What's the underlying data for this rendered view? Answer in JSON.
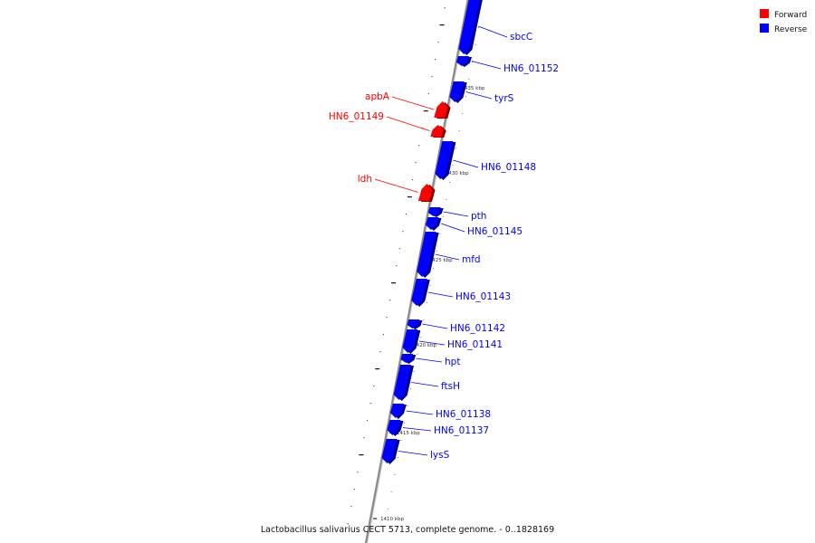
{
  "caption": "Lactobacillus salivarius CECT 5713, complete genome. - 0..1828169",
  "legend": [
    {
      "label": "Forward",
      "color": "#ff0000"
    },
    {
      "label": "Reverse",
      "color": "#0000ff"
    }
  ],
  "ticks": [
    "1435 kbp",
    "1430 kbp",
    "1425 kbp",
    "1420 kbp",
    "1415 kbp",
    "1410 kbp"
  ],
  "genes": [
    {
      "name": "sbcC",
      "strand": "Reverse"
    },
    {
      "name": "HN6_01152",
      "strand": "Reverse"
    },
    {
      "name": "tyrS",
      "strand": "Reverse"
    },
    {
      "name": "apbA",
      "strand": "Forward"
    },
    {
      "name": "HN6_01149",
      "strand": "Forward"
    },
    {
      "name": "HN6_01148",
      "strand": "Reverse"
    },
    {
      "name": "ldh",
      "strand": "Forward"
    },
    {
      "name": "pth",
      "strand": "Reverse"
    },
    {
      "name": "HN6_01145",
      "strand": "Reverse"
    },
    {
      "name": "mfd",
      "strand": "Reverse"
    },
    {
      "name": "HN6_01143",
      "strand": "Reverse"
    },
    {
      "name": "HN6_01142",
      "strand": "Reverse"
    },
    {
      "name": "HN6_01141",
      "strand": "Reverse"
    },
    {
      "name": "hpt",
      "strand": "Reverse"
    },
    {
      "name": "ftsH",
      "strand": "Reverse"
    },
    {
      "name": "HN6_01138",
      "strand": "Reverse"
    },
    {
      "name": "HN6_01137",
      "strand": "Reverse"
    },
    {
      "name": "lysS",
      "strand": "Reverse"
    }
  ]
}
